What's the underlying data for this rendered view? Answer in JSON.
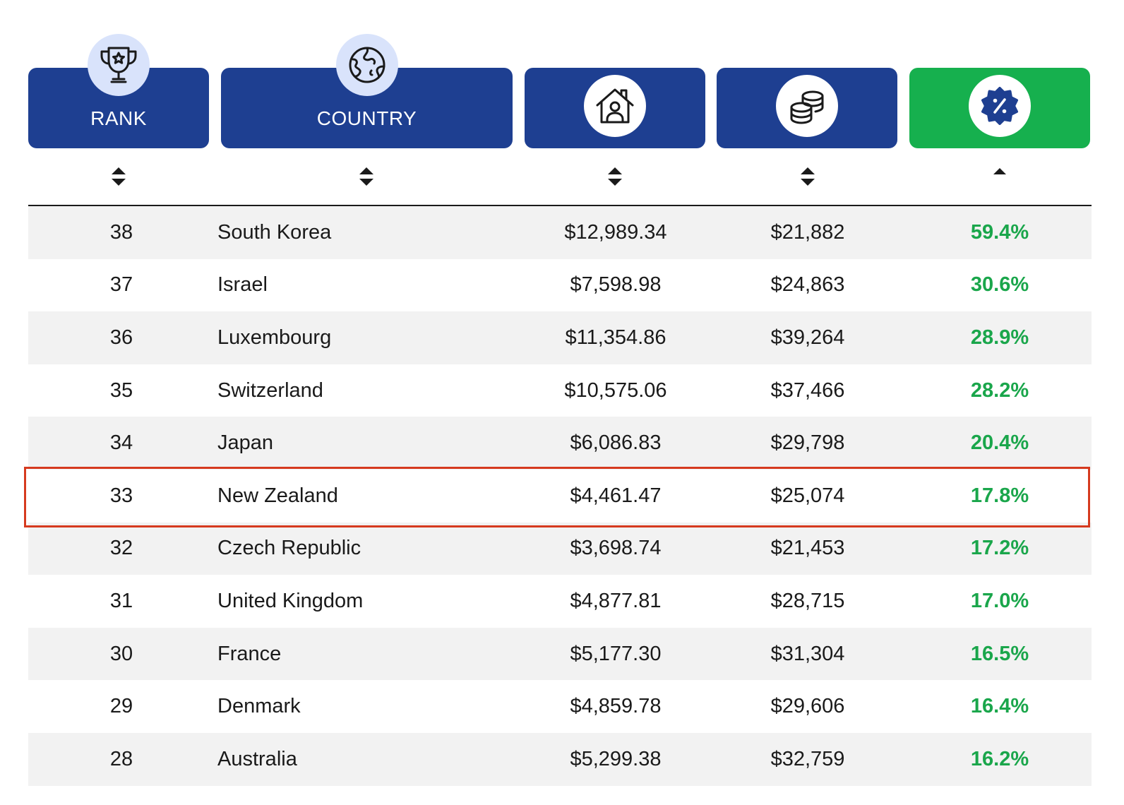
{
  "header": {
    "rank_label": "RANK",
    "country_label": "COUNTRY",
    "icons": [
      "trophy-icon",
      "globe-icon",
      "house-icon",
      "coins-icon",
      "percent-badge-icon"
    ],
    "sort_states": [
      "both",
      "both",
      "both",
      "both",
      "ascending"
    ]
  },
  "colors": {
    "header_blue": "#1e3f91",
    "header_green": "#16b04e",
    "percent_text": "#1aa64b",
    "highlight_border": "#d63a1f",
    "row_alt": "#f2f2f2"
  },
  "rows": [
    {
      "rank": "38",
      "country": "South Korea",
      "price": "$12,989.34",
      "salary": "$21,882",
      "percent": "59.4%"
    },
    {
      "rank": "37",
      "country": "Israel",
      "price": "$7,598.98",
      "salary": "$24,863",
      "percent": "30.6%"
    },
    {
      "rank": "36",
      "country": "Luxembourg",
      "price": "$11,354.86",
      "salary": "$39,264",
      "percent": "28.9%"
    },
    {
      "rank": "35",
      "country": "Switzerland",
      "price": "$10,575.06",
      "salary": "$37,466",
      "percent": "28.2%"
    },
    {
      "rank": "34",
      "country": "Japan",
      "price": "$6,086.83",
      "salary": "$29,798",
      "percent": "20.4%"
    },
    {
      "rank": "33",
      "country": "New Zealand",
      "price": "$4,461.47",
      "salary": "$25,074",
      "percent": "17.8%",
      "highlighted": true
    },
    {
      "rank": "32",
      "country": "Czech Republic",
      "price": "$3,698.74",
      "salary": "$21,453",
      "percent": "17.2%"
    },
    {
      "rank": "31",
      "country": "United Kingdom",
      "price": "$4,877.81",
      "salary": "$28,715",
      "percent": "17.0%"
    },
    {
      "rank": "30",
      "country": "France",
      "price": "$5,177.30",
      "salary": "$31,304",
      "percent": "16.5%"
    },
    {
      "rank": "29",
      "country": "Denmark",
      "price": "$4,859.78",
      "salary": "$29,606",
      "percent": "16.4%"
    },
    {
      "rank": "28",
      "country": "Australia",
      "price": "$5,299.38",
      "salary": "$32,759",
      "percent": "16.2%"
    }
  ]
}
